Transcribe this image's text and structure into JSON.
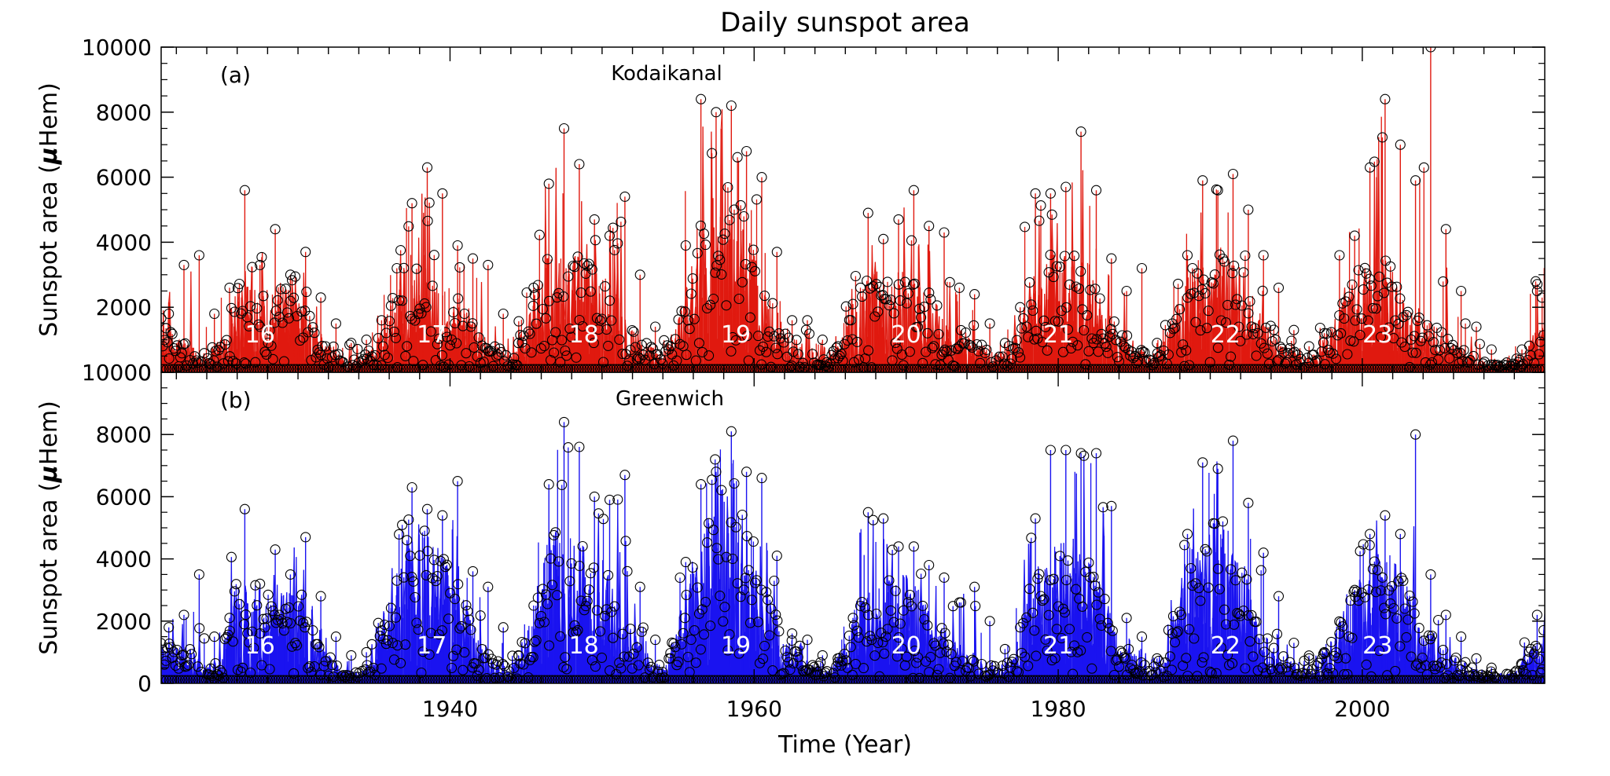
{
  "title": "Daily sunspot area",
  "xlabel": "Time (Year)",
  "xlim": [
    1921,
    2012
  ],
  "x_ticks": [
    1940,
    1960,
    1980,
    2000
  ],
  "x_tick_labels": [
    "1940",
    "1960",
    "1980",
    "2000"
  ],
  "colors": {
    "kodaikanal": "#e0190f",
    "greenwich": "#1a13f0",
    "marker": "#000000"
  },
  "chart_data": [
    {
      "type": "line",
      "panel_label": "(a)",
      "title": "Kodaikanal",
      "ylabel": "Sunspot area (µHem)",
      "ylabel_prefix": "Sunspot area (",
      "ylabel_mu": "µ",
      "ylabel_suffix": "Hem)",
      "ylim": [
        0,
        10000
      ],
      "y_ticks": [
        0,
        2000,
        4000,
        6000,
        8000,
        10000
      ],
      "y_tick_labels": [
        "0",
        "2000",
        "4000",
        "6000",
        "8000",
        "10000"
      ],
      "color": "#e0190f",
      "cycle_labels": [
        {
          "text": "16",
          "x": 1927.5
        },
        {
          "text": "17",
          "x": 1938.8
        },
        {
          "text": "18",
          "x": 1948.8
        },
        {
          "text": "19",
          "x": 1958.8
        },
        {
          "text": "20",
          "x": 1970.0
        },
        {
          "text": "21",
          "x": 1980.0
        },
        {
          "text": "22",
          "x": 1991.0
        },
        {
          "text": "23",
          "x": 2001.0
        }
      ],
      "envelope": {
        "x": [
          1921,
          1922,
          1923,
          1924,
          1925,
          1926,
          1927,
          1928,
          1929,
          1930,
          1931,
          1932,
          1933,
          1934,
          1935,
          1936,
          1937,
          1938,
          1939,
          1940,
          1941,
          1942,
          1943,
          1944,
          1945,
          1946,
          1947,
          1948,
          1949,
          1950,
          1951,
          1952,
          1953,
          1954,
          1955,
          1956,
          1957,
          1958,
          1959,
          1960,
          1961,
          1962,
          1963,
          1964,
          1965,
          1966,
          1967,
          1968,
          1969,
          1970,
          1971,
          1972,
          1973,
          1974,
          1975,
          1976,
          1977,
          1978,
          1979,
          1980,
          1981,
          1982,
          1983,
          1984,
          1985,
          1986,
          1987,
          1988,
          1989,
          1990,
          1991,
          1992,
          1993,
          1994,
          1995,
          1996,
          1997,
          1998,
          1999,
          2000,
          2001,
          2002,
          2003,
          2004,
          2005,
          2006,
          2007,
          2008,
          2009,
          2010,
          2011,
          2012
        ],
        "daily": [
          1200,
          1000,
          700,
          500,
          900,
          2500,
          2700,
          2200,
          2200,
          2000,
          1300,
          800,
          400,
          300,
          700,
          1700,
          3000,
          3600,
          3000,
          2300,
          1800,
          1100,
          700,
          400,
          1300,
          2700,
          3300,
          3100,
          3000,
          2600,
          2000,
          1300,
          800,
          400,
          1500,
          3500,
          4600,
          5200,
          4500,
          3400,
          2000,
          1200,
          800,
          600,
          400,
          1100,
          2300,
          2600,
          2700,
          2800,
          2300,
          1800,
          1300,
          1000,
          700,
          500,
          800,
          2200,
          3100,
          3300,
          3200,
          2900,
          1800,
          1200,
          800,
          400,
          900,
          2000,
          3000,
          3200,
          3300,
          2900,
          1700,
          1200,
          700,
          400,
          500,
          1300,
          2400,
          2800,
          3000,
          2800,
          2000,
          1500,
          1100,
          800,
          500,
          300,
          200,
          300,
          900,
          1300
        ],
        "peak": [
          1800,
          3300,
          3600,
          1800,
          2600,
          5600,
          3300,
          4400,
          3000,
          3700,
          2300,
          1500,
          900,
          1000,
          1600,
          3200,
          5200,
          6300,
          5500,
          3900,
          3500,
          3300,
          1800,
          900,
          2600,
          5800,
          7500,
          6400,
          4700,
          4200,
          5400,
          3000,
          1400,
          800,
          3900,
          8400,
          8000,
          8200,
          6800,
          6000,
          3700,
          1600,
          1600,
          1000,
          800,
          2100,
          4900,
          4100,
          4700,
          5600,
          4500,
          4300,
          2600,
          2400,
          1500,
          900,
          2000,
          5500,
          5500,
          5700,
          7400,
          5600,
          3500,
          2500,
          3200,
          900,
          1500,
          3600,
          5900,
          5600,
          6100,
          5000,
          3600,
          2600,
          1300,
          800,
          1200,
          3600,
          4200,
          6300,
          8400,
          7000,
          5900,
          10000,
          4400,
          2500,
          1400,
          700,
          300,
          700,
          2500,
          3500
        ]
      }
    },
    {
      "type": "line",
      "panel_label": "(b)",
      "title": "Greenwich",
      "ylabel": "Sunspot area (µHem)",
      "ylabel_prefix": "Sunspot area (",
      "ylabel_mu": "µ",
      "ylabel_suffix": "Hem)",
      "ylim": [
        0,
        10000
      ],
      "y_ticks": [
        0,
        2000,
        4000,
        6000,
        8000,
        10000
      ],
      "y_tick_labels": [
        "0",
        "2000",
        "4000",
        "6000",
        "8000",
        "10000"
      ],
      "color": "#1a13f0",
      "cycle_labels": [
        {
          "text": "16",
          "x": 1927.5
        },
        {
          "text": "17",
          "x": 1938.8
        },
        {
          "text": "18",
          "x": 1948.8
        },
        {
          "text": "19",
          "x": 1958.8
        },
        {
          "text": "20",
          "x": 1970.0
        },
        {
          "text": "21",
          "x": 1980.0
        },
        {
          "text": "22",
          "x": 1991.0
        },
        {
          "text": "23",
          "x": 2001.0
        }
      ],
      "envelope": {
        "x": [
          1921,
          1922,
          1923,
          1924,
          1925,
          1926,
          1927,
          1928,
          1929,
          1930,
          1931,
          1932,
          1933,
          1934,
          1935,
          1936,
          1937,
          1938,
          1939,
          1940,
          1941,
          1942,
          1943,
          1944,
          1945,
          1946,
          1947,
          1948,
          1949,
          1950,
          1951,
          1952,
          1953,
          1954,
          1955,
          1956,
          1957,
          1958,
          1959,
          1960,
          1961,
          1962,
          1963,
          1964,
          1965,
          1966,
          1967,
          1968,
          1969,
          1970,
          1971,
          1972,
          1973,
          1974,
          1975,
          1976,
          1977,
          1978,
          1979,
          1980,
          1981,
          1982,
          1983,
          1984,
          1985,
          1986,
          1987,
          1988,
          1989,
          1990,
          1991,
          1992,
          1993,
          1994,
          1995,
          1996,
          1997,
          1998,
          1999,
          2000,
          2001,
          2002,
          2003,
          2004,
          2005,
          2006,
          2007,
          2008,
          2009,
          2010,
          2011,
          2012
        ],
        "daily": [
          1200,
          1100,
          900,
          500,
          900,
          2800,
          2800,
          2500,
          2800,
          2700,
          1400,
          800,
          400,
          300,
          700,
          2200,
          3800,
          4200,
          3800,
          3200,
          2200,
          1200,
          700,
          400,
          1400,
          3600,
          4400,
          4300,
          4000,
          3400,
          2200,
          1400,
          800,
          400,
          1600,
          3800,
          4600,
          5400,
          4800,
          3800,
          2300,
          1300,
          800,
          500,
          400,
          1200,
          2600,
          2900,
          2800,
          3000,
          2500,
          1700,
          1200,
          900,
          700,
          500,
          800,
          2400,
          3500,
          3800,
          3900,
          3600,
          2400,
          1300,
          800,
          400,
          1000,
          2800,
          4100,
          4300,
          4400,
          3700,
          2000,
          1100,
          700,
          400,
          500,
          1300,
          2200,
          3000,
          3600,
          3700,
          2600,
          1800,
          1200,
          800,
          500,
          300,
          200,
          300,
          900,
          1500
        ],
        "peak": [
          1800,
          2200,
          3500,
          1500,
          2100,
          5600,
          3200,
          4300,
          3500,
          4700,
          2800,
          1500,
          900,
          1000,
          1700,
          3300,
          6300,
          5600,
          5400,
          6500,
          3600,
          3100,
          1800,
          900,
          2500,
          6400,
          8400,
          7600,
          6000,
          5900,
          6700,
          3100,
          1400,
          800,
          3900,
          6400,
          6800,
          8100,
          6800,
          6600,
          4100,
          1600,
          1400,
          900,
          800,
          2100,
          5500,
          5300,
          4400,
          4400,
          3800,
          3400,
          2600,
          3100,
          2000,
          1100,
          1800,
          5300,
          7500,
          7500,
          7400,
          7400,
          5700,
          2100,
          1500,
          800,
          1600,
          4800,
          7100,
          6900,
          7800,
          5800,
          4200,
          2800,
          1300,
          800,
          1000,
          1600,
          3000,
          4800,
          5400,
          4800,
          8000,
          3500,
          2200,
          1500,
          800,
          500,
          300,
          600,
          2200,
          2900
        ]
      }
    }
  ]
}
